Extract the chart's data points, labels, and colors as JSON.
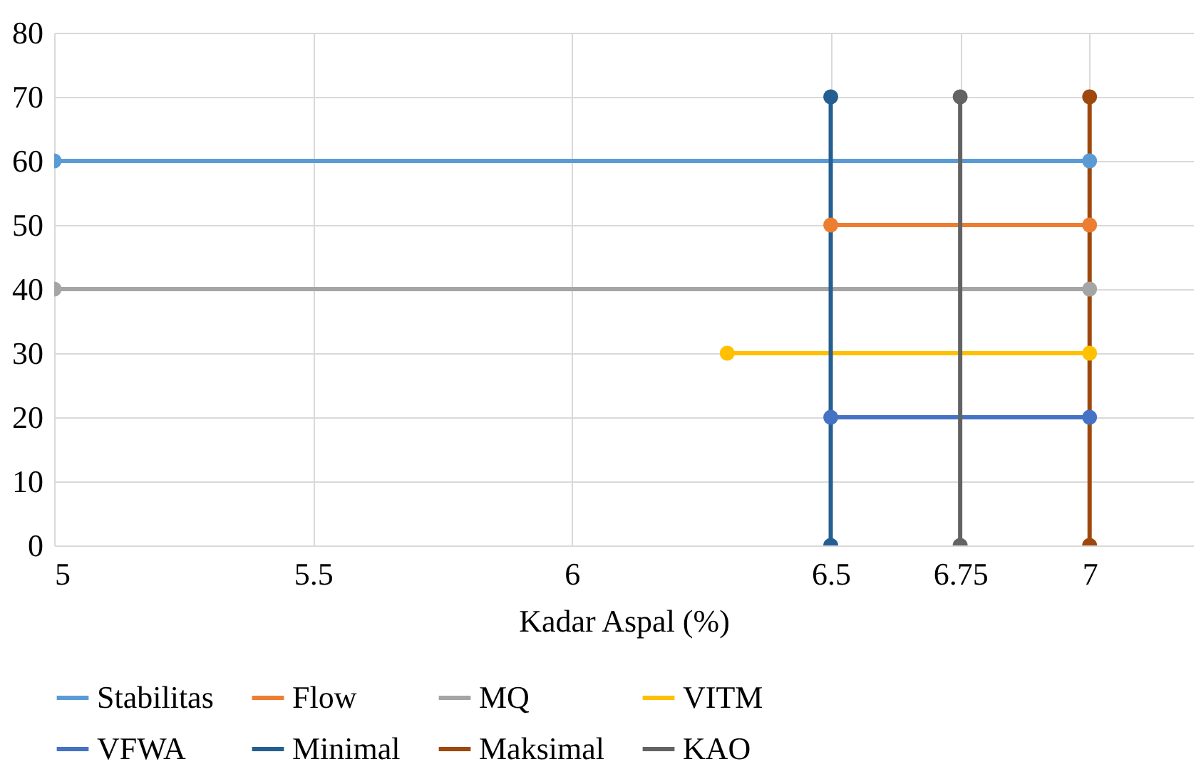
{
  "chart_data": {
    "type": "line",
    "xlabel": "Kadar Aspal (%)",
    "xlim": [
      5,
      7.2
    ],
    "xticks": [
      5,
      5.5,
      6,
      6.5,
      6.75,
      7
    ],
    "ylim": [
      0,
      80
    ],
    "yticks": [
      0,
      10,
      20,
      30,
      40,
      50,
      60,
      70,
      80
    ],
    "grid": true,
    "legend": "bottom",
    "marker": "circle",
    "line_style": "solid",
    "series": [
      {
        "name": "Stabilitas",
        "color": "#5b9bd5",
        "x": [
          5,
          7
        ],
        "values": [
          60,
          60
        ]
      },
      {
        "name": "Flow",
        "color": "#ed7d31",
        "x": [
          6.5,
          7
        ],
        "values": [
          50,
          50
        ]
      },
      {
        "name": "MQ",
        "color": "#a5a5a5",
        "x": [
          5,
          7
        ],
        "values": [
          40,
          40
        ]
      },
      {
        "name": "VITM",
        "color": "#ffc000",
        "x": [
          6.3,
          7
        ],
        "values": [
          30,
          30
        ]
      },
      {
        "name": "VFWA",
        "color": "#4472c4",
        "x": [
          6.5,
          7
        ],
        "values": [
          20,
          20
        ]
      },
      {
        "name": "Minimal",
        "color": "#255e91",
        "x": [
          6.5,
          6.5
        ],
        "values": [
          0,
          70
        ]
      },
      {
        "name": "Maksimal",
        "color": "#9e480e",
        "x": [
          7,
          7
        ],
        "values": [
          0,
          70
        ]
      },
      {
        "name": "KAO",
        "color": "#636363",
        "x": [
          6.75,
          6.75
        ],
        "values": [
          0,
          70
        ]
      }
    ]
  }
}
